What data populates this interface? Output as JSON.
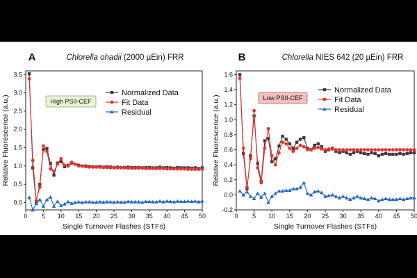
{
  "chart_data": [
    {
      "type": "line",
      "panel_letter": "A",
      "title_italic": "Chlorella ohadii",
      "title_rest": " (2000 µEin) FRR",
      "xlabel": "Single Turnover Flashes (STFs)",
      "ylabel": "Relative Fluorescence (a.u.)",
      "xlim": [
        0,
        50
      ],
      "ylim": [
        -0.2,
        3.6
      ],
      "xticks": [
        0,
        5,
        10,
        15,
        20,
        25,
        30,
        35,
        40,
        45,
        50
      ],
      "yticks": [
        0.0,
        0.5,
        1.0,
        1.5,
        2.0,
        2.5,
        3.0,
        3.5
      ],
      "ytick_decimals": 1,
      "badge": {
        "text": "High PSII-CEF",
        "fill": "#eaf3d6",
        "border": "#8aa86a"
      },
      "legend_position": "top-right",
      "x": [
        1,
        2,
        3,
        4,
        5,
        6,
        7,
        8,
        9,
        10,
        11,
        12,
        13,
        14,
        15,
        16,
        17,
        18,
        19,
        20,
        21,
        22,
        23,
        24,
        25,
        26,
        27,
        28,
        29,
        30,
        31,
        32,
        33,
        34,
        35,
        36,
        37,
        38,
        39,
        40,
        41,
        42,
        43,
        44,
        45,
        46,
        47,
        48,
        49,
        50
      ],
      "series": [
        {
          "name": "Normalized Data",
          "color": "#3a3a3a",
          "marker": "square",
          "values": [
            3.52,
            0.95,
            0.02,
            0.5,
            1.45,
            1.48,
            1.07,
            0.75,
            1.08,
            1.12,
            0.98,
            1.02,
            1.08,
            1.05,
            1.02,
            1.0,
            1.0,
            0.99,
            0.98,
            0.98,
            0.99,
            0.97,
            0.98,
            0.97,
            0.96,
            0.97,
            0.96,
            0.96,
            0.97,
            0.96,
            0.96,
            0.96,
            0.95,
            0.96,
            0.96,
            0.95,
            0.95,
            0.97,
            0.95,
            0.96,
            0.95,
            0.94,
            0.96,
            0.95,
            0.95,
            0.95,
            0.94,
            0.95,
            0.93,
            0.95
          ]
        },
        {
          "name": "Fit Data",
          "color": "#e8302a",
          "marker": "circle",
          "values": [
            3.38,
            1.15,
            0.05,
            0.42,
            1.55,
            1.4,
            0.92,
            0.85,
            1.05,
            1.2,
            1.02,
            1.0,
            1.1,
            1.05,
            1.0,
            1.0,
            0.98,
            0.97,
            0.97,
            0.97,
            0.97,
            0.96,
            0.96,
            0.95,
            0.95,
            0.95,
            0.95,
            0.95,
            0.94,
            0.94,
            0.94,
            0.94,
            0.94,
            0.93,
            0.93,
            0.93,
            0.93,
            0.93,
            0.93,
            0.92,
            0.92,
            0.92,
            0.92,
            0.92,
            0.92,
            0.91,
            0.91,
            0.91,
            0.91,
            0.91
          ]
        },
        {
          "name": "Residual",
          "color": "#2166c8",
          "marker": "triangle",
          "values": [
            0.14,
            -0.2,
            -0.03,
            0.08,
            -0.1,
            0.08,
            0.15,
            -0.1,
            0.03,
            -0.08,
            -0.04,
            0.02,
            -0.02,
            0.0,
            0.02,
            0.0,
            0.02,
            0.02,
            0.01,
            0.01,
            0.02,
            0.01,
            0.02,
            0.02,
            0.01,
            0.02,
            0.01,
            0.01,
            0.03,
            0.02,
            0.02,
            0.02,
            0.01,
            0.03,
            0.03,
            0.02,
            0.02,
            0.04,
            0.02,
            0.04,
            0.03,
            0.02,
            0.04,
            0.03,
            0.03,
            0.04,
            0.03,
            0.04,
            0.02,
            0.04
          ]
        }
      ]
    },
    {
      "type": "line",
      "panel_letter": "B",
      "title_italic": "Chlorella",
      "title_rest": " NIES 642 (20 µEin) FRR",
      "xlabel": "Single Turnover Flashes (STFs)",
      "ylabel": "Relative Fluorescence (a.u.)",
      "xlim": [
        0,
        50
      ],
      "ylim": [
        -0.2,
        1.65
      ],
      "xticks": [
        0,
        5,
        10,
        15,
        20,
        25,
        30,
        35,
        40,
        45,
        50
      ],
      "yticks": [
        -0.2,
        0.0,
        0.2,
        0.4,
        0.6,
        0.8,
        1.0,
        1.2,
        1.4,
        1.6
      ],
      "ytick_decimals": 1,
      "badge": {
        "text": "Low PSII-CEF",
        "fill": "#f3c0c0",
        "border": "#b06060"
      },
      "legend_position": "top-right",
      "x": [
        1,
        2,
        3,
        4,
        5,
        6,
        7,
        8,
        9,
        10,
        11,
        12,
        13,
        14,
        15,
        16,
        17,
        18,
        19,
        20,
        21,
        22,
        23,
        24,
        25,
        26,
        27,
        28,
        29,
        30,
        31,
        32,
        33,
        34,
        35,
        36,
        37,
        38,
        39,
        40,
        41,
        42,
        43,
        44,
        45,
        46,
        47,
        48,
        49,
        50
      ],
      "series": [
        {
          "name": "Normalized Data",
          "color": "#3a3a3a",
          "marker": "square",
          "values": [
            1.6,
            0.55,
            0.08,
            0.52,
            1.05,
            0.42,
            0.18,
            0.72,
            0.75,
            0.44,
            0.48,
            0.65,
            0.78,
            0.74,
            0.68,
            0.62,
            0.7,
            0.74,
            0.76,
            0.62,
            0.6,
            0.66,
            0.68,
            0.64,
            0.58,
            0.6,
            0.62,
            0.58,
            0.56,
            0.58,
            0.56,
            0.54,
            0.56,
            0.58,
            0.56,
            0.55,
            0.54,
            0.56,
            0.55,
            0.52,
            0.54,
            0.55,
            0.54,
            0.54,
            0.54,
            0.55,
            0.54,
            0.55,
            0.56,
            0.56
          ]
        },
        {
          "name": "Fit Data",
          "color": "#e8302a",
          "marker": "circle",
          "values": [
            1.55,
            0.62,
            0.1,
            0.48,
            1.12,
            0.36,
            0.16,
            0.62,
            0.88,
            0.52,
            0.4,
            0.56,
            0.7,
            0.68,
            0.62,
            0.58,
            0.62,
            0.66,
            0.64,
            0.6,
            0.6,
            0.62,
            0.63,
            0.61,
            0.6,
            0.61,
            0.61,
            0.6,
            0.6,
            0.6,
            0.6,
            0.6,
            0.6,
            0.6,
            0.6,
            0.6,
            0.6,
            0.6,
            0.6,
            0.6,
            0.6,
            0.6,
            0.6,
            0.6,
            0.6,
            0.6,
            0.6,
            0.6,
            0.6,
            0.6
          ]
        },
        {
          "name": "Residual",
          "color": "#2166c8",
          "marker": "triangle",
          "values": [
            0.05,
            0.0,
            0.04,
            -0.02,
            -0.05,
            0.02,
            -0.03,
            0.02,
            -0.1,
            -0.02,
            0.02,
            0.05,
            0.05,
            0.06,
            0.06,
            0.08,
            0.08,
            0.1,
            0.16,
            0.02,
            0.0,
            0.04,
            0.05,
            0.03,
            -0.02,
            -0.01,
            0.0,
            -0.02,
            -0.04,
            -0.02,
            -0.04,
            -0.06,
            -0.04,
            -0.02,
            -0.04,
            -0.05,
            -0.06,
            -0.04,
            -0.05,
            -0.08,
            -0.06,
            -0.05,
            -0.06,
            -0.06,
            -0.06,
            -0.05,
            -0.06,
            -0.05,
            -0.04,
            -0.04
          ]
        }
      ]
    }
  ]
}
